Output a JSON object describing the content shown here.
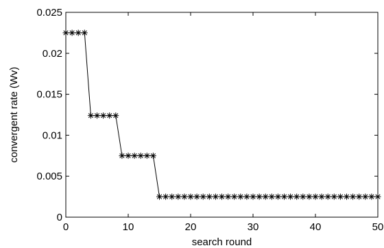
{
  "chart_data": {
    "type": "line",
    "title": "",
    "xlabel": "search round",
    "ylabel": "convergent rate (Wv)",
    "xlim": [
      0,
      50
    ],
    "ylim": [
      0,
      0.025
    ],
    "x_ticks": [
      0,
      10,
      20,
      30,
      40,
      50
    ],
    "x_tick_labels": [
      "0",
      "10",
      "20",
      "30",
      "40",
      "50"
    ],
    "y_ticks": [
      0,
      0.005,
      0.01,
      0.015,
      0.02,
      0.025
    ],
    "y_tick_labels": [
      "0",
      "0.005",
      "0.01",
      "0.015",
      "0.02",
      "0.025"
    ],
    "grid": false,
    "marker": "asterisk",
    "colors": {
      "line": "#000000",
      "axes": "#000000",
      "background": "#ffffff"
    },
    "series": [
      {
        "x": [
          0,
          1,
          2,
          3,
          4,
          5,
          6,
          7,
          8,
          9,
          10,
          11,
          12,
          13,
          14,
          15,
          16,
          17,
          18,
          19,
          20,
          21,
          22,
          23,
          24,
          25,
          26,
          27,
          28,
          29,
          30,
          31,
          32,
          33,
          34,
          35,
          36,
          37,
          38,
          39,
          40,
          41,
          42,
          43,
          44,
          45,
          46,
          47,
          48,
          49,
          50
        ],
        "values": [
          0.0225,
          0.0225,
          0.0225,
          0.0225,
          0.0124,
          0.0124,
          0.0124,
          0.0124,
          0.0124,
          0.0075,
          0.0075,
          0.0075,
          0.0075,
          0.0075,
          0.0075,
          0.0025,
          0.0025,
          0.0025,
          0.0025,
          0.0025,
          0.0025,
          0.0025,
          0.0025,
          0.0025,
          0.0025,
          0.0025,
          0.0025,
          0.0025,
          0.0025,
          0.0025,
          0.0025,
          0.0025,
          0.0025,
          0.0025,
          0.0025,
          0.0025,
          0.0025,
          0.0025,
          0.0025,
          0.0025,
          0.0025,
          0.0025,
          0.0025,
          0.0025,
          0.0025,
          0.0025,
          0.0025,
          0.0025,
          0.0025,
          0.0025,
          0.0025
        ]
      }
    ]
  }
}
